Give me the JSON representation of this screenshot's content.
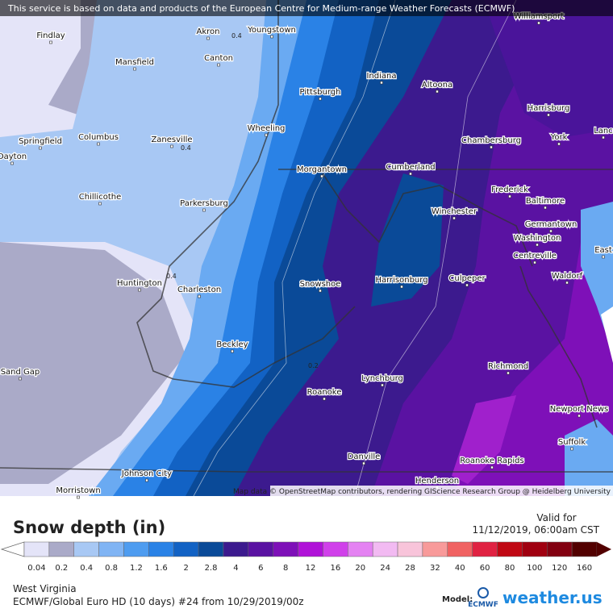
{
  "header": {
    "notice": "This service is based on data and products of the European Centre for Medium-range Weather Forecasts (ECMWF)"
  },
  "map": {
    "cities": [
      "Findlay",
      "Akron",
      "Youngstown",
      "Williamsport",
      "Mansfield",
      "Canton",
      "Indiana",
      "Altoona",
      "Pittsburgh",
      "Harrisburg",
      "Springfield",
      "Columbus",
      "Zanesville",
      "Wheeling",
      "Chambersburg",
      "York",
      "Lanc",
      "Dayton",
      "Morgantown",
      "Cumberland",
      "Frederick",
      "Baltimore",
      "Chillicothe",
      "Parkersburg",
      "Winchester",
      "Germantown",
      "Washington",
      "East",
      "Centreville",
      "Huntington",
      "Charleston",
      "Snowshoe",
      "Harrisonburg",
      "Culpeper",
      "Waldorf",
      "Beckley",
      "Richmond",
      "Lynchburg",
      "Roanoke",
      "Sand Gap",
      "Newport News",
      "Suffolk",
      "Danville",
      "Roanoke Rapids",
      "Johnson City",
      "Henderson",
      "Morristown"
    ],
    "contour_labels": [
      "0.4",
      "0.4",
      "0.4",
      "0.2"
    ],
    "attribution": "Map data © OpenStreetMap contributors, rendering GIScience Research Group @ Heidelberg University"
  },
  "legend": {
    "title": "Snow depth (in)",
    "valid_label": "Valid for",
    "valid_time": "11/12/2019, 06:00am CST",
    "labels": [
      "0.04",
      "0.2",
      "0.4",
      "0.8",
      "1.2",
      "1.6",
      "2",
      "2.8",
      "4",
      "6",
      "8",
      "12",
      "16",
      "20",
      "24",
      "28",
      "32",
      "40",
      "60",
      "80",
      "100",
      "120",
      "160"
    ],
    "colors": [
      "#e4e4f8",
      "#aaaac8",
      "#a8c8f4",
      "#80b4f4",
      "#4e9cf0",
      "#2a82e6",
      "#1262c4",
      "#0a4a98",
      "#3c1a8e",
      "#5a12a2",
      "#7e10b8",
      "#b012d8",
      "#d040ea",
      "#e482f2",
      "#f2baf2",
      "#f8c4da",
      "#f89a9a",
      "#f06262",
      "#e02242",
      "#c00814",
      "#a00010",
      "#820010",
      "#520000"
    ]
  },
  "footer": {
    "region": "West Virginia",
    "model_run": "ECMWF/Global Euro HD (10 days) #24 from 10/29/2019/00z",
    "model_label": "Model:",
    "model_logo": "ECMWF",
    "brand": "weather.us"
  }
}
